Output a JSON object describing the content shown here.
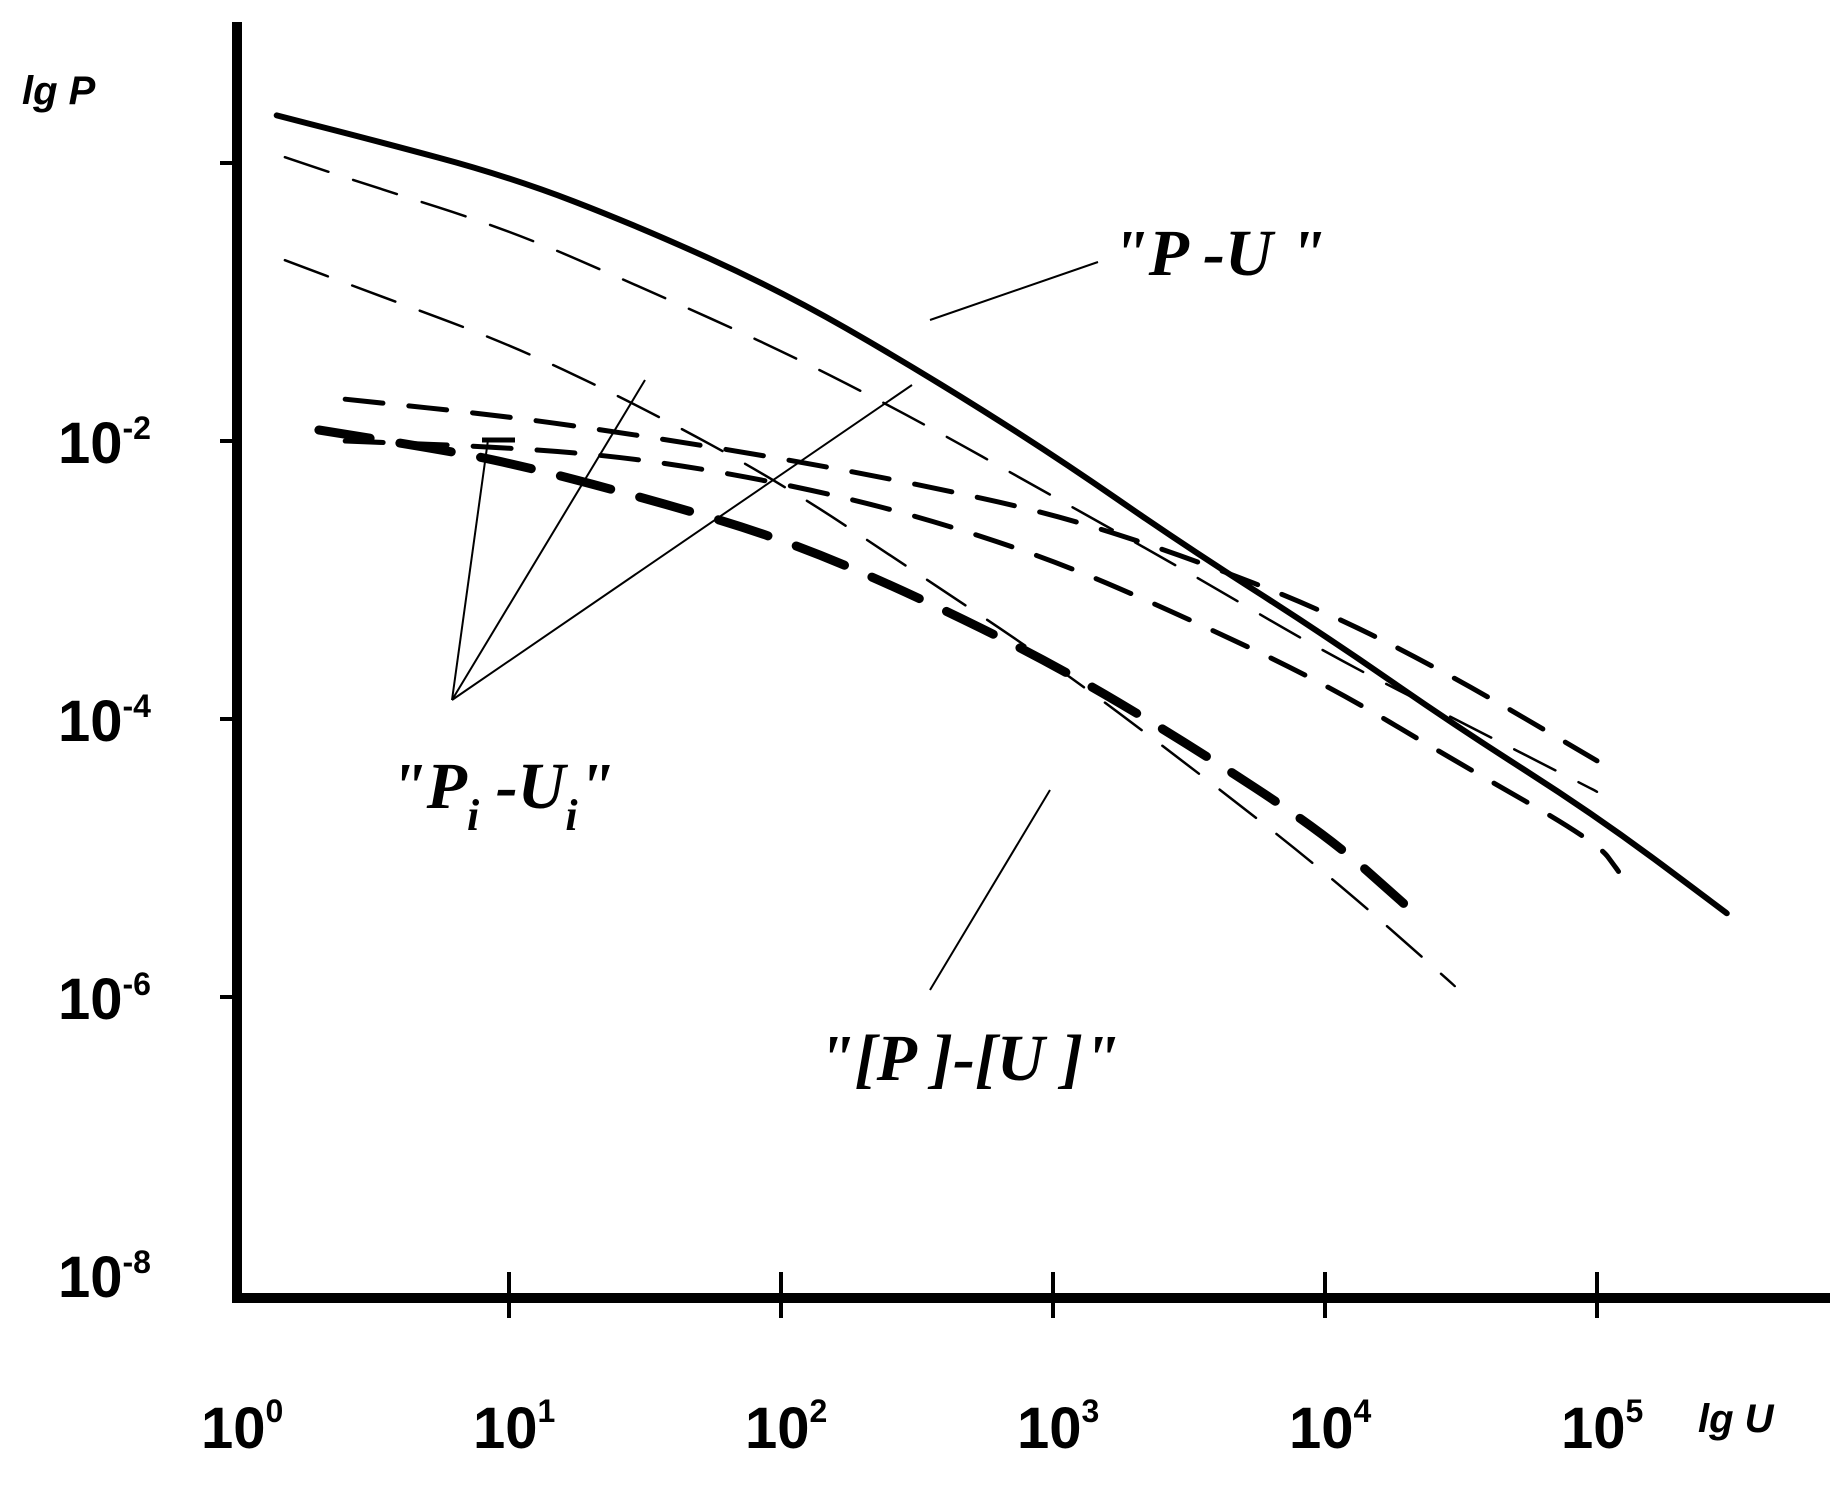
{
  "chart_data": {
    "type": "line",
    "xlabel": "lg U",
    "ylabel": "lg P",
    "xscale": "log",
    "yscale": "log",
    "xlim": [
      1,
      1000000
    ],
    "ylim": [
      1e-08,
      10
    ],
    "x_ticks": [
      {
        "base": "10",
        "exp": "0",
        "value": 1
      },
      {
        "base": "10",
        "exp": "1",
        "value": 10
      },
      {
        "base": "10",
        "exp": "2",
        "value": 100
      },
      {
        "base": "10",
        "exp": "3",
        "value": 1000
      },
      {
        "base": "10",
        "exp": "4",
        "value": 10000
      },
      {
        "base": "10",
        "exp": "5",
        "value": 100000
      }
    ],
    "y_ticks": [
      {
        "base": "10",
        "exp": "-2",
        "value": 0.01
      },
      {
        "base": "10",
        "exp": "-4",
        "value": 0.0001
      },
      {
        "base": "10",
        "exp": "-6",
        "value": 1e-06
      },
      {
        "base": "10",
        "exp": "-8",
        "value": 1e-08
      }
    ],
    "y_minor_ticks": [
      1
    ],
    "grid": false,
    "series": [
      {
        "style": "solid-thick",
        "x": [
          1.4,
          3,
          10,
          30,
          100,
          300,
          1000,
          3000,
          10000,
          30000,
          100000,
          300000
        ],
        "y": [
          2.2,
          1.5,
          0.8,
          0.35,
          0.12,
          0.035,
          0.008,
          0.0018,
          0.0004,
          9e-05,
          2e-05,
          4e-06
        ]
      },
      {
        "style": "dashed-thin",
        "x": [
          1.5,
          3,
          10,
          30,
          100,
          300,
          1000,
          3000,
          10000,
          30000,
          100000
        ],
        "y": [
          1.1,
          0.7,
          0.33,
          0.13,
          0.045,
          0.015,
          0.004,
          0.0012,
          0.0003,
          0.0001,
          3e-05
        ]
      },
      {
        "style": "dashed-thin",
        "x": [
          1.5,
          3,
          10,
          30,
          100,
          300,
          1000,
          3000,
          10000,
          30000
        ],
        "y": [
          0.2,
          0.12,
          0.05,
          0.018,
          0.005,
          0.0012,
          0.00025,
          5e-05,
          8e-06,
          1.2e-06
        ]
      },
      {
        "style": "dashed-medium",
        "x": [
          2.5,
          10,
          30,
          100,
          300,
          1000,
          3000,
          10000,
          30000,
          100000
        ],
        "y": [
          0.02,
          0.015,
          0.011,
          0.0075,
          0.005,
          0.003,
          0.0015,
          0.0006,
          0.0002,
          5e-05
        ]
      },
      {
        "style": "dashed-medium",
        "x": [
          2.5,
          10,
          30,
          100,
          300,
          1000,
          3000,
          10000,
          30000,
          100000,
          120000
        ],
        "y": [
          0.01,
          0.009,
          0.0075,
          0.005,
          0.003,
          0.0014,
          0.00055,
          0.00018,
          5e-05,
          1.3e-05,
          8e-06
        ]
      },
      {
        "style": "dashed-thick",
        "x": [
          2,
          5,
          10,
          30,
          100,
          300,
          1000,
          3000,
          10000,
          20000
        ],
        "y": [
          0.012,
          0.009,
          0.007,
          0.004,
          0.002,
          0.0008,
          0.00025,
          7e-05,
          1.5e-05,
          4.5e-06
        ]
      }
    ],
    "annotations": [
      {
        "id": "pu",
        "text": "\"P -U \""
      },
      {
        "id": "piui",
        "parts": [
          "\"P",
          "i",
          " -U",
          "i",
          "\""
        ]
      },
      {
        "id": "bracket",
        "text": "\"[P ]-[U ]\""
      }
    ]
  }
}
